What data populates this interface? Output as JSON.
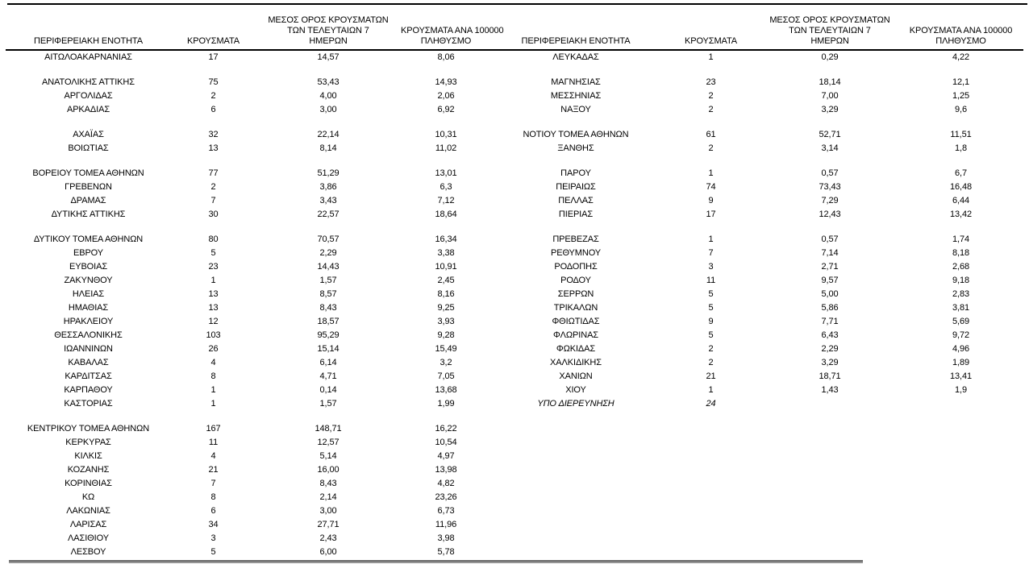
{
  "table": {
    "header": {
      "region": "ΠΕΡΙΦΕΡΕΙΑΚΗ ΕΝΟΤΗΤΑ",
      "cases": "ΚΡΟΥΣΜΑΤΑ",
      "avg7_line1": "ΜΕΣΟΣ ΟΡΟΣ ΚΡΟΥΣΜΑΤΩΝ",
      "avg7_line2": "ΤΩΝ ΤΕΛΕΥΤΑΙΩΝ 7",
      "avg7_line3": "ΗΜΕΡΩΝ",
      "per100k_line1": "ΚΡΟΥΣΜΑΤΑ ΑΝΑ 100000",
      "per100k_line2": "ΠΛΗΘΥΣΜΟ"
    },
    "rows": [
      {
        "left": [
          "ΑΙΤΩΛΟΑΚΑΡΝΑΝΙΑΣ",
          "17",
          "14,57",
          "8,06"
        ],
        "right": [
          "ΛΕΥΚΑΔΑΣ",
          "1",
          "0,29",
          "4,22"
        ]
      },
      {
        "blank": true
      },
      {
        "left": [
          "ΑΝΑΤΟΛΙΚΗΣ ΑΤΤΙΚΗΣ",
          "75",
          "53,43",
          "14,93"
        ],
        "right": [
          "ΜΑΓΝΗΣΙΑΣ",
          "23",
          "18,14",
          "12,1"
        ]
      },
      {
        "left": [
          "ΑΡΓΟΛΙΔΑΣ",
          "2",
          "4,00",
          "2,06"
        ],
        "right": [
          "ΜΕΣΣΗΝΙΑΣ",
          "2",
          "7,00",
          "1,25"
        ]
      },
      {
        "left": [
          "ΑΡΚΑΔΙΑΣ",
          "6",
          "3,00",
          "6,92"
        ],
        "right": [
          "ΝΑΞΟΥ",
          "2",
          "3,29",
          "9,6"
        ]
      },
      {
        "blank": true
      },
      {
        "left": [
          "ΑΧΑΪΑΣ",
          "32",
          "22,14",
          "10,31"
        ],
        "right": [
          "ΝΟΤΙΟΥ ΤΟΜΕΑ ΑΘΗΝΩΝ",
          "61",
          "52,71",
          "11,51"
        ]
      },
      {
        "left": [
          "ΒΟΙΩΤΙΑΣ",
          "13",
          "8,14",
          "11,02"
        ],
        "right": [
          "ΞΑΝΘΗΣ",
          "2",
          "3,14",
          "1,8"
        ]
      },
      {
        "blank": true
      },
      {
        "left": [
          "ΒΟΡΕΙΟΥ ΤΟΜΕΑ ΑΘΗΝΩΝ",
          "77",
          "51,29",
          "13,01"
        ],
        "right": [
          "ΠΑΡΟΥ",
          "1",
          "0,57",
          "6,7"
        ]
      },
      {
        "left": [
          "ΓΡΕΒΕΝΩΝ",
          "2",
          "3,86",
          "6,3"
        ],
        "right": [
          "ΠΕΙΡΑΙΩΣ",
          "74",
          "73,43",
          "16,48"
        ]
      },
      {
        "left": [
          "ΔΡΑΜΑΣ",
          "7",
          "3,43",
          "7,12"
        ],
        "right": [
          "ΠΕΛΛΑΣ",
          "9",
          "7,29",
          "6,44"
        ]
      },
      {
        "left": [
          "ΔΥΤΙΚΗΣ ΑΤΤΙΚΗΣ",
          "30",
          "22,57",
          "18,64"
        ],
        "right": [
          "ΠΙΕΡΙΑΣ",
          "17",
          "12,43",
          "13,42"
        ]
      },
      {
        "blank": true
      },
      {
        "left": [
          "ΔΥΤΙΚΟΥ ΤΟΜΕΑ ΑΘΗΝΩΝ",
          "80",
          "70,57",
          "16,34"
        ],
        "right": [
          "ΠΡΕΒΕΖΑΣ",
          "1",
          "0,57",
          "1,74"
        ]
      },
      {
        "left": [
          "ΕΒΡΟΥ",
          "5",
          "2,29",
          "3,38"
        ],
        "right": [
          "ΡΕΘΥΜΝΟΥ",
          "7",
          "7,14",
          "8,18"
        ]
      },
      {
        "left": [
          "ΕΥΒΟΙΑΣ",
          "23",
          "14,43",
          "10,91"
        ],
        "right": [
          "ΡΟΔΟΠΗΣ",
          "3",
          "2,71",
          "2,68"
        ]
      },
      {
        "left": [
          "ΖΑΚΥΝΘΟΥ",
          "1",
          "1,57",
          "2,45"
        ],
        "right": [
          "ΡΟΔΟΥ",
          "11",
          "9,57",
          "9,18"
        ]
      },
      {
        "left": [
          "ΗΛΕΙΑΣ",
          "13",
          "8,57",
          "8,16"
        ],
        "right": [
          "ΣΕΡΡΩΝ",
          "5",
          "5,00",
          "2,83"
        ]
      },
      {
        "left": [
          "ΗΜΑΘΙΑΣ",
          "13",
          "8,43",
          "9,25"
        ],
        "right": [
          "ΤΡΙΚΑΛΩΝ",
          "5",
          "5,86",
          "3,81"
        ]
      },
      {
        "left": [
          "ΗΡΑΚΛΕΙΟΥ",
          "12",
          "18,57",
          "3,93"
        ],
        "right": [
          "ΦΘΙΩΤΙΔΑΣ",
          "9",
          "7,71",
          "5,69"
        ]
      },
      {
        "left": [
          "ΘΕΣΣΑΛΟΝΙΚΗΣ",
          "103",
          "95,29",
          "9,28"
        ],
        "right": [
          "ΦΛΩΡΙΝΑΣ",
          "5",
          "6,43",
          "9,72"
        ]
      },
      {
        "left": [
          "ΙΩΑΝΝΙΝΩΝ",
          "26",
          "15,14",
          "15,49"
        ],
        "right": [
          "ΦΩΚΙΔΑΣ",
          "2",
          "2,29",
          "4,96"
        ]
      },
      {
        "left": [
          "ΚΑΒΑΛΑΣ",
          "4",
          "6,14",
          "3,2"
        ],
        "right": [
          "ΧΑΛΚΙΔΙΚΗΣ",
          "2",
          "3,29",
          "1,89"
        ]
      },
      {
        "left": [
          "ΚΑΡΔΙΤΣΑΣ",
          "8",
          "4,71",
          "7,05"
        ],
        "right": [
          "ΧΑΝΙΩΝ",
          "21",
          "18,71",
          "13,41"
        ]
      },
      {
        "left": [
          "ΚΑΡΠΑΘΟΥ",
          "1",
          "0,14",
          "13,68"
        ],
        "right": [
          "ΧΙΟΥ",
          "1",
          "1,43",
          "1,9"
        ]
      },
      {
        "left": [
          "ΚΑΣΤΟΡΙΑΣ",
          "1",
          "1,57",
          "1,99"
        ],
        "right": [
          "ΥΠΟ ΔΙΕΡΕΥΝΗΣΗ",
          "24",
          "",
          ""
        ],
        "right_italic": true
      },
      {
        "blank": true
      },
      {
        "left": [
          "ΚΕΝΤΡΙΚΟΥ ΤΟΜΕΑ ΑΘΗΝΩΝ",
          "167",
          "148,71",
          "16,22"
        ]
      },
      {
        "left": [
          "ΚΕΡΚΥΡΑΣ",
          "11",
          "12,57",
          "10,54"
        ]
      },
      {
        "left": [
          "ΚΙΛΚΙΣ",
          "4",
          "5,14",
          "4,97"
        ]
      },
      {
        "left": [
          "ΚΟΖΑΝΗΣ",
          "21",
          "16,00",
          "13,98"
        ]
      },
      {
        "left": [
          "ΚΟΡΙΝΘΙΑΣ",
          "7",
          "8,43",
          "4,82"
        ]
      },
      {
        "left": [
          "ΚΩ",
          "8",
          "2,14",
          "23,26"
        ]
      },
      {
        "left": [
          "ΛΑΚΩΝΙΑΣ",
          "6",
          "3,00",
          "6,73"
        ]
      },
      {
        "left": [
          "ΛΑΡΙΣΑΣ",
          "34",
          "27,71",
          "11,96"
        ]
      },
      {
        "left": [
          "ΛΑΣΙΘΙΟΥ",
          "3",
          "2,43",
          "3,98"
        ]
      },
      {
        "left": [
          "ΛΕΣΒΟΥ",
          "5",
          "6,00",
          "5,78"
        ]
      }
    ]
  },
  "colors": {
    "text": "#000000",
    "rule_top": "#000000",
    "rule_header": "#000000",
    "rule_bottom": "#6b6b6b"
  }
}
